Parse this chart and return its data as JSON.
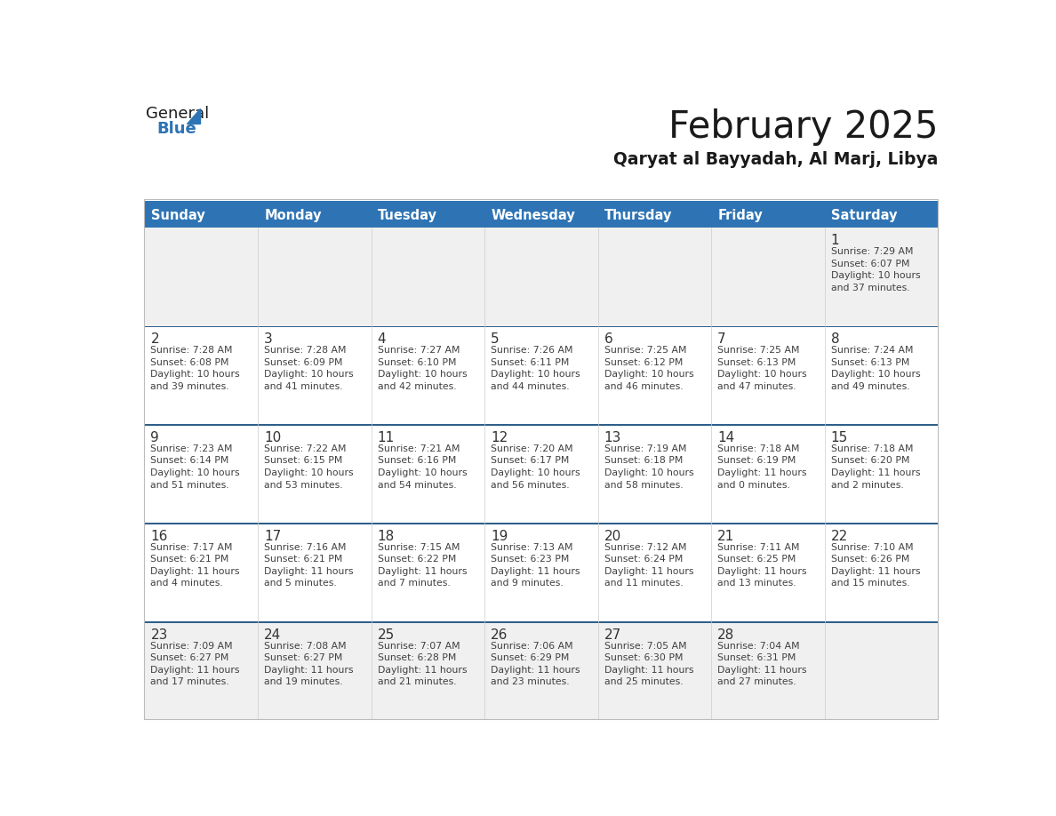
{
  "title": "February 2025",
  "subtitle": "Qaryat al Bayyadah, Al Marj, Libya",
  "days_of_week": [
    "Sunday",
    "Monday",
    "Tuesday",
    "Wednesday",
    "Thursday",
    "Friday",
    "Saturday"
  ],
  "header_bg": "#2E74B5",
  "header_text": "#FFFFFF",
  "cell_bg_white": "#FFFFFF",
  "cell_bg_gray": "#F0F0F0",
  "divider_color": "#2E5F8A",
  "day_number_color": "#333333",
  "info_text_color": "#404040",
  "title_color": "#1A1A1A",
  "subtitle_color": "#1A1A1A",
  "logo_general_color": "#1A1A1A",
  "logo_blue_color": "#2E74B5",
  "weeks": [
    [
      {
        "day": null,
        "info": ""
      },
      {
        "day": null,
        "info": ""
      },
      {
        "day": null,
        "info": ""
      },
      {
        "day": null,
        "info": ""
      },
      {
        "day": null,
        "info": ""
      },
      {
        "day": null,
        "info": ""
      },
      {
        "day": 1,
        "info": "Sunrise: 7:29 AM\nSunset: 6:07 PM\nDaylight: 10 hours\nand 37 minutes."
      }
    ],
    [
      {
        "day": 2,
        "info": "Sunrise: 7:28 AM\nSunset: 6:08 PM\nDaylight: 10 hours\nand 39 minutes."
      },
      {
        "day": 3,
        "info": "Sunrise: 7:28 AM\nSunset: 6:09 PM\nDaylight: 10 hours\nand 41 minutes."
      },
      {
        "day": 4,
        "info": "Sunrise: 7:27 AM\nSunset: 6:10 PM\nDaylight: 10 hours\nand 42 minutes."
      },
      {
        "day": 5,
        "info": "Sunrise: 7:26 AM\nSunset: 6:11 PM\nDaylight: 10 hours\nand 44 minutes."
      },
      {
        "day": 6,
        "info": "Sunrise: 7:25 AM\nSunset: 6:12 PM\nDaylight: 10 hours\nand 46 minutes."
      },
      {
        "day": 7,
        "info": "Sunrise: 7:25 AM\nSunset: 6:13 PM\nDaylight: 10 hours\nand 47 minutes."
      },
      {
        "day": 8,
        "info": "Sunrise: 7:24 AM\nSunset: 6:13 PM\nDaylight: 10 hours\nand 49 minutes."
      }
    ],
    [
      {
        "day": 9,
        "info": "Sunrise: 7:23 AM\nSunset: 6:14 PM\nDaylight: 10 hours\nand 51 minutes."
      },
      {
        "day": 10,
        "info": "Sunrise: 7:22 AM\nSunset: 6:15 PM\nDaylight: 10 hours\nand 53 minutes."
      },
      {
        "day": 11,
        "info": "Sunrise: 7:21 AM\nSunset: 6:16 PM\nDaylight: 10 hours\nand 54 minutes."
      },
      {
        "day": 12,
        "info": "Sunrise: 7:20 AM\nSunset: 6:17 PM\nDaylight: 10 hours\nand 56 minutes."
      },
      {
        "day": 13,
        "info": "Sunrise: 7:19 AM\nSunset: 6:18 PM\nDaylight: 10 hours\nand 58 minutes."
      },
      {
        "day": 14,
        "info": "Sunrise: 7:18 AM\nSunset: 6:19 PM\nDaylight: 11 hours\nand 0 minutes."
      },
      {
        "day": 15,
        "info": "Sunrise: 7:18 AM\nSunset: 6:20 PM\nDaylight: 11 hours\nand 2 minutes."
      }
    ],
    [
      {
        "day": 16,
        "info": "Sunrise: 7:17 AM\nSunset: 6:21 PM\nDaylight: 11 hours\nand 4 minutes."
      },
      {
        "day": 17,
        "info": "Sunrise: 7:16 AM\nSunset: 6:21 PM\nDaylight: 11 hours\nand 5 minutes."
      },
      {
        "day": 18,
        "info": "Sunrise: 7:15 AM\nSunset: 6:22 PM\nDaylight: 11 hours\nand 7 minutes."
      },
      {
        "day": 19,
        "info": "Sunrise: 7:13 AM\nSunset: 6:23 PM\nDaylight: 11 hours\nand 9 minutes."
      },
      {
        "day": 20,
        "info": "Sunrise: 7:12 AM\nSunset: 6:24 PM\nDaylight: 11 hours\nand 11 minutes."
      },
      {
        "day": 21,
        "info": "Sunrise: 7:11 AM\nSunset: 6:25 PM\nDaylight: 11 hours\nand 13 minutes."
      },
      {
        "day": 22,
        "info": "Sunrise: 7:10 AM\nSunset: 6:26 PM\nDaylight: 11 hours\nand 15 minutes."
      }
    ],
    [
      {
        "day": 23,
        "info": "Sunrise: 7:09 AM\nSunset: 6:27 PM\nDaylight: 11 hours\nand 17 minutes."
      },
      {
        "day": 24,
        "info": "Sunrise: 7:08 AM\nSunset: 6:27 PM\nDaylight: 11 hours\nand 19 minutes."
      },
      {
        "day": 25,
        "info": "Sunrise: 7:07 AM\nSunset: 6:28 PM\nDaylight: 11 hours\nand 21 minutes."
      },
      {
        "day": 26,
        "info": "Sunrise: 7:06 AM\nSunset: 6:29 PM\nDaylight: 11 hours\nand 23 minutes."
      },
      {
        "day": 27,
        "info": "Sunrise: 7:05 AM\nSunset: 6:30 PM\nDaylight: 11 hours\nand 25 minutes."
      },
      {
        "day": 28,
        "info": "Sunrise: 7:04 AM\nSunset: 6:31 PM\nDaylight: 11 hours\nand 27 minutes."
      },
      {
        "day": null,
        "info": ""
      }
    ]
  ]
}
